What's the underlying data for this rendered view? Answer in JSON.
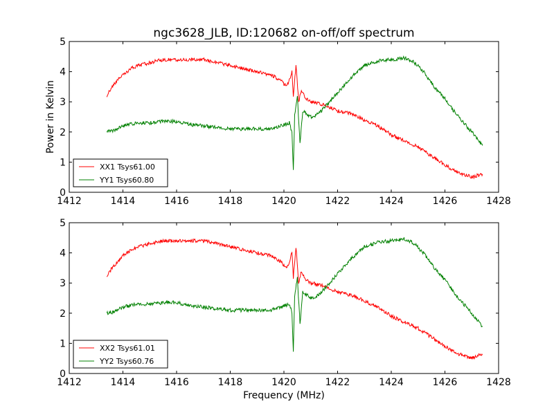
{
  "title": "ngc3628_JLB, ID:120682 on-off/off spectrum",
  "chart_data": [
    {
      "type": "line",
      "ylabel": "Power in Kelvin",
      "xlabel": "",
      "xlim": [
        1412,
        1428
      ],
      "ylim": [
        0,
        5
      ],
      "xticks": [
        "1412",
        "1414",
        "1416",
        "1418",
        "1420",
        "1422",
        "1424",
        "1426",
        "1428"
      ],
      "yticks": [
        "0",
        "1",
        "2",
        "3",
        "4",
        "5"
      ],
      "legend_position": "lower-left",
      "series": [
        {
          "name": "XX1 Tsys61.00",
          "color": "#ff0000",
          "points": [
            [
              1413.4,
              3.2
            ],
            [
              1413.6,
              3.5
            ],
            [
              1413.8,
              3.7
            ],
            [
              1414.0,
              3.9
            ],
            [
              1414.3,
              4.1
            ],
            [
              1414.6,
              4.2
            ],
            [
              1415.0,
              4.3
            ],
            [
              1415.5,
              4.4
            ],
            [
              1416.0,
              4.4
            ],
            [
              1416.5,
              4.4
            ],
            [
              1417.0,
              4.4
            ],
            [
              1417.5,
              4.3
            ],
            [
              1418.0,
              4.2
            ],
            [
              1418.5,
              4.1
            ],
            [
              1419.0,
              4.0
            ],
            [
              1419.5,
              3.9
            ],
            [
              1419.9,
              3.7
            ],
            [
              1420.1,
              3.5
            ],
            [
              1420.2,
              3.7
            ],
            [
              1420.3,
              4.0
            ],
            [
              1420.35,
              3.2
            ],
            [
              1420.45,
              4.2
            ],
            [
              1420.55,
              3.0
            ],
            [
              1420.65,
              3.4
            ],
            [
              1420.8,
              3.1
            ],
            [
              1421.0,
              3.0
            ],
            [
              1421.5,
              2.9
            ],
            [
              1422.0,
              2.7
            ],
            [
              1422.5,
              2.6
            ],
            [
              1423.0,
              2.4
            ],
            [
              1423.5,
              2.2
            ],
            [
              1424.0,
              1.9
            ],
            [
              1424.5,
              1.7
            ],
            [
              1425.0,
              1.5
            ],
            [
              1425.5,
              1.2
            ],
            [
              1426.0,
              0.9
            ],
            [
              1426.5,
              0.65
            ],
            [
              1427.0,
              0.5
            ],
            [
              1427.4,
              0.6
            ]
          ]
        },
        {
          "name": "YY1 Tsys60.80",
          "color": "#008000",
          "points": [
            [
              1413.4,
              2.0
            ],
            [
              1413.7,
              2.05
            ],
            [
              1414.0,
              2.2
            ],
            [
              1414.5,
              2.3
            ],
            [
              1415.0,
              2.3
            ],
            [
              1415.5,
              2.35
            ],
            [
              1416.0,
              2.35
            ],
            [
              1416.5,
              2.25
            ],
            [
              1417.0,
              2.2
            ],
            [
              1417.5,
              2.15
            ],
            [
              1418.0,
              2.1
            ],
            [
              1418.5,
              2.1
            ],
            [
              1419.0,
              2.1
            ],
            [
              1419.5,
              2.1
            ],
            [
              1419.9,
              2.2
            ],
            [
              1420.2,
              2.3
            ],
            [
              1420.3,
              2.0
            ],
            [
              1420.35,
              0.7
            ],
            [
              1420.4,
              2.6
            ],
            [
              1420.5,
              3.2
            ],
            [
              1420.6,
              1.6
            ],
            [
              1420.7,
              2.7
            ],
            [
              1421.0,
              2.5
            ],
            [
              1421.3,
              2.6
            ],
            [
              1421.6,
              2.9
            ],
            [
              1422.0,
              3.3
            ],
            [
              1422.5,
              3.8
            ],
            [
              1423.0,
              4.2
            ],
            [
              1423.5,
              4.35
            ],
            [
              1424.0,
              4.4
            ],
            [
              1424.5,
              4.45
            ],
            [
              1424.8,
              4.35
            ],
            [
              1425.2,
              4.0
            ],
            [
              1425.6,
              3.5
            ],
            [
              1426.0,
              3.1
            ],
            [
              1426.5,
              2.5
            ],
            [
              1427.0,
              2.0
            ],
            [
              1427.4,
              1.55
            ]
          ]
        }
      ]
    },
    {
      "type": "line",
      "ylabel": "",
      "xlabel": "Frequency (MHz)",
      "xlim": [
        1412,
        1428
      ],
      "ylim": [
        0,
        5
      ],
      "xticks": [
        "1412",
        "1414",
        "1416",
        "1418",
        "1420",
        "1422",
        "1424",
        "1426",
        "1428"
      ],
      "yticks": [
        "0",
        "1",
        "2",
        "3",
        "4",
        "5"
      ],
      "legend_position": "lower-left",
      "series": [
        {
          "name": "XX2 Tsys61.01",
          "color": "#ff0000",
          "points": [
            [
              1413.4,
              3.25
            ],
            [
              1413.6,
              3.5
            ],
            [
              1413.8,
              3.7
            ],
            [
              1414.0,
              3.9
            ],
            [
              1414.3,
              4.1
            ],
            [
              1414.6,
              4.2
            ],
            [
              1415.0,
              4.3
            ],
            [
              1415.5,
              4.4
            ],
            [
              1416.0,
              4.4
            ],
            [
              1416.5,
              4.4
            ],
            [
              1417.0,
              4.4
            ],
            [
              1417.5,
              4.3
            ],
            [
              1418.0,
              4.2
            ],
            [
              1418.5,
              4.1
            ],
            [
              1419.0,
              4.0
            ],
            [
              1419.5,
              3.9
            ],
            [
              1419.9,
              3.7
            ],
            [
              1420.1,
              3.5
            ],
            [
              1420.2,
              3.7
            ],
            [
              1420.3,
              4.0
            ],
            [
              1420.35,
              3.2
            ],
            [
              1420.45,
              4.2
            ],
            [
              1420.55,
              3.0
            ],
            [
              1420.65,
              3.4
            ],
            [
              1420.8,
              3.1
            ],
            [
              1421.0,
              3.0
            ],
            [
              1421.5,
              2.9
            ],
            [
              1422.0,
              2.7
            ],
            [
              1422.5,
              2.6
            ],
            [
              1423.0,
              2.4
            ],
            [
              1423.5,
              2.2
            ],
            [
              1424.0,
              1.9
            ],
            [
              1424.5,
              1.7
            ],
            [
              1425.0,
              1.5
            ],
            [
              1425.5,
              1.2
            ],
            [
              1426.0,
              0.9
            ],
            [
              1426.5,
              0.65
            ],
            [
              1427.0,
              0.5
            ],
            [
              1427.4,
              0.65
            ]
          ]
        },
        {
          "name": "YY2 Tsys60.76",
          "color": "#008000",
          "points": [
            [
              1413.4,
              2.0
            ],
            [
              1413.7,
              2.05
            ],
            [
              1414.0,
              2.2
            ],
            [
              1414.5,
              2.3
            ],
            [
              1415.0,
              2.3
            ],
            [
              1415.5,
              2.35
            ],
            [
              1416.0,
              2.35
            ],
            [
              1416.5,
              2.25
            ],
            [
              1417.0,
              2.2
            ],
            [
              1417.5,
              2.15
            ],
            [
              1418.0,
              2.1
            ],
            [
              1418.5,
              2.1
            ],
            [
              1419.0,
              2.1
            ],
            [
              1419.5,
              2.1
            ],
            [
              1419.9,
              2.2
            ],
            [
              1420.2,
              2.3
            ],
            [
              1420.3,
              2.0
            ],
            [
              1420.35,
              0.7
            ],
            [
              1420.4,
              2.6
            ],
            [
              1420.5,
              3.2
            ],
            [
              1420.6,
              1.6
            ],
            [
              1420.7,
              2.7
            ],
            [
              1421.0,
              2.5
            ],
            [
              1421.3,
              2.6
            ],
            [
              1421.6,
              2.9
            ],
            [
              1422.0,
              3.3
            ],
            [
              1422.5,
              3.8
            ],
            [
              1423.0,
              4.2
            ],
            [
              1423.5,
              4.35
            ],
            [
              1424.0,
              4.4
            ],
            [
              1424.5,
              4.45
            ],
            [
              1424.8,
              4.35
            ],
            [
              1425.2,
              4.0
            ],
            [
              1425.6,
              3.5
            ],
            [
              1426.0,
              3.1
            ],
            [
              1426.5,
              2.5
            ],
            [
              1427.0,
              2.0
            ],
            [
              1427.4,
              1.55
            ]
          ]
        }
      ]
    }
  ]
}
